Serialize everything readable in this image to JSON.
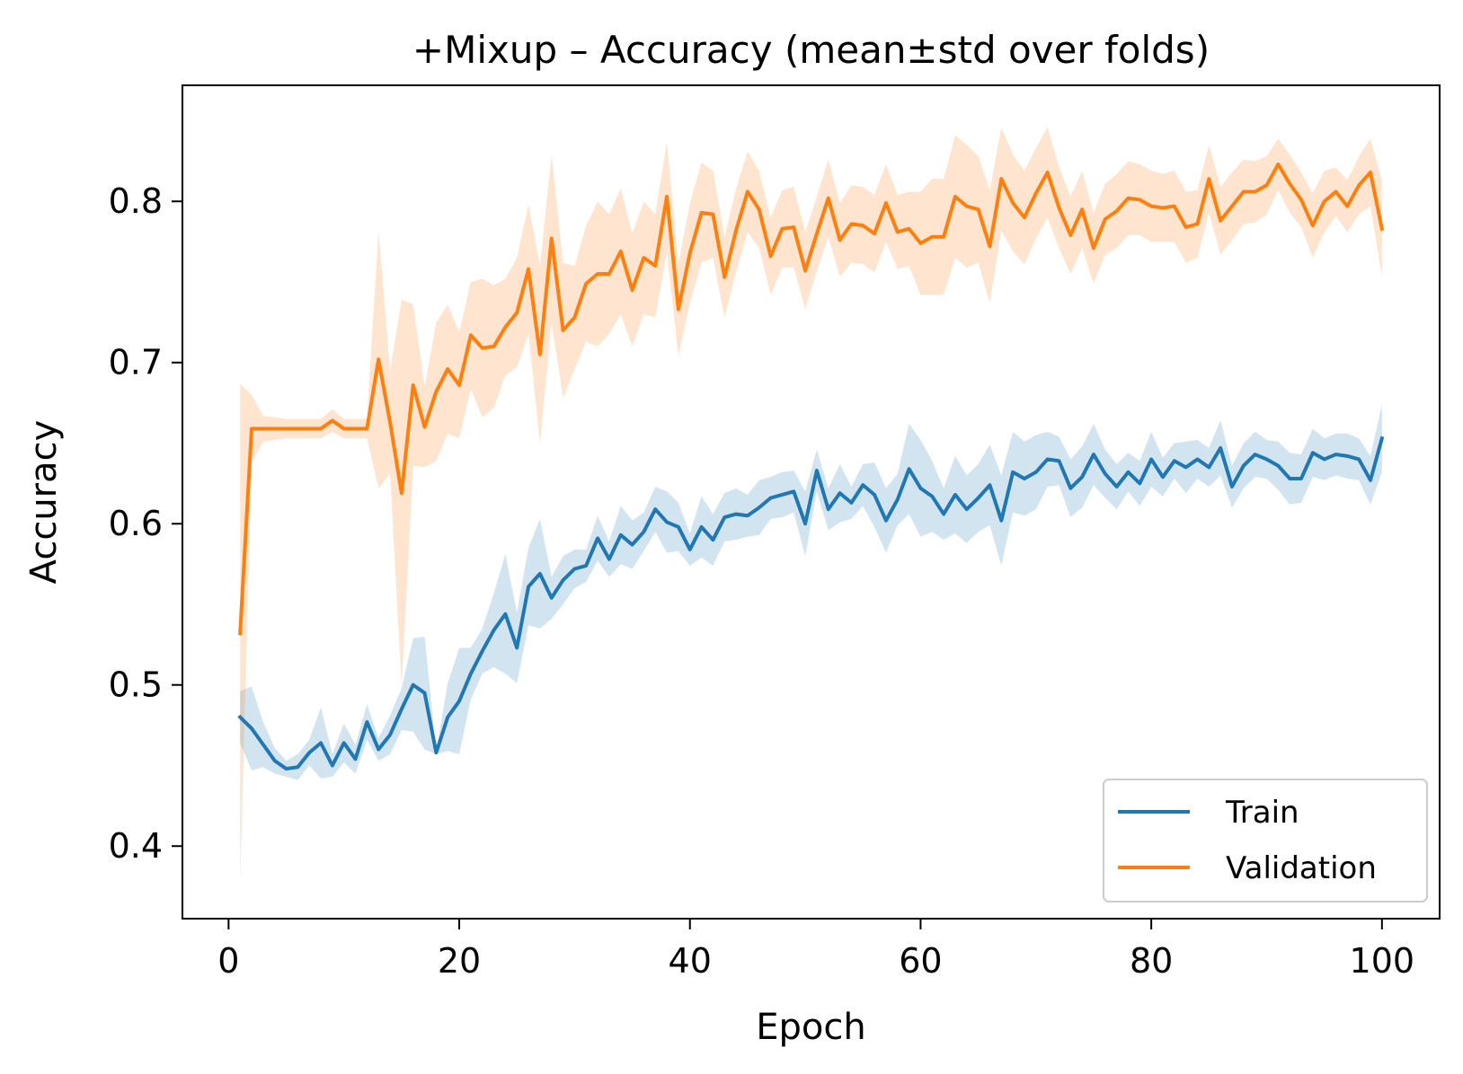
{
  "chart_data": {
    "type": "line",
    "title": "+Mixup – Accuracy (mean±std over folds)",
    "xlabel": "Epoch",
    "ylabel": "Accuracy",
    "xlim": [
      -4,
      105
    ],
    "ylim": [
      0.355,
      0.872
    ],
    "x_ticks": [
      0,
      20,
      40,
      60,
      80,
      100
    ],
    "x_tick_labels": [
      "0",
      "20",
      "40",
      "60",
      "80",
      "100"
    ],
    "y_ticks": [
      0.4,
      0.5,
      0.6,
      0.7,
      0.8
    ],
    "y_tick_labels": [
      "0.4",
      "0.5",
      "0.6",
      "0.7",
      "0.8"
    ],
    "grid": false,
    "legend_position": "lower-right",
    "band_opacity": 0.2,
    "x_start": 1,
    "series": [
      {
        "name": "Train",
        "color": "#1f77b4",
        "mean": [
          0.48,
          0.473,
          0.463,
          0.453,
          0.448,
          0.449,
          0.458,
          0.464,
          0.45,
          0.464,
          0.454,
          0.477,
          0.46,
          0.469,
          0.485,
          0.5,
          0.495,
          0.458,
          0.48,
          0.49,
          0.507,
          0.521,
          0.534,
          0.544,
          0.523,
          0.561,
          0.569,
          0.554,
          0.565,
          0.572,
          0.574,
          0.591,
          0.578,
          0.593,
          0.587,
          0.595,
          0.609,
          0.601,
          0.598,
          0.584,
          0.598,
          0.59,
          0.604,
          0.606,
          0.605,
          0.61,
          0.616,
          0.618,
          0.62,
          0.6,
          0.633,
          0.609,
          0.619,
          0.613,
          0.624,
          0.618,
          0.602,
          0.615,
          0.634,
          0.622,
          0.617,
          0.606,
          0.618,
          0.609,
          0.616,
          0.624,
          0.602,
          0.632,
          0.628,
          0.632,
          0.64,
          0.639,
          0.622,
          0.629,
          0.643,
          0.631,
          0.623,
          0.632,
          0.625,
          0.64,
          0.629,
          0.639,
          0.635,
          0.64,
          0.635,
          0.647,
          0.623,
          0.636,
          0.643,
          0.64,
          0.636,
          0.628,
          0.628,
          0.644,
          0.64,
          0.643,
          0.642,
          0.64,
          0.627,
          0.653
        ],
        "std": [
          0.016,
          0.026,
          0.014,
          0.008,
          0.005,
          0.008,
          0.008,
          0.022,
          0.007,
          0.012,
          0.009,
          0.011,
          0.007,
          0.012,
          0.013,
          0.029,
          0.035,
          0.001,
          0.021,
          0.033,
          0.016,
          0.014,
          0.023,
          0.037,
          0.022,
          0.024,
          0.034,
          0.013,
          0.015,
          0.012,
          0.01,
          0.014,
          0.011,
          0.018,
          0.015,
          0.012,
          0.014,
          0.019,
          0.015,
          0.01,
          0.019,
          0.016,
          0.015,
          0.016,
          0.013,
          0.017,
          0.013,
          0.014,
          0.013,
          0.02,
          0.013,
          0.013,
          0.018,
          0.01,
          0.013,
          0.02,
          0.02,
          0.016,
          0.028,
          0.03,
          0.022,
          0.016,
          0.024,
          0.021,
          0.021,
          0.025,
          0.028,
          0.025,
          0.023,
          0.023,
          0.017,
          0.015,
          0.018,
          0.019,
          0.019,
          0.015,
          0.014,
          0.012,
          0.014,
          0.017,
          0.012,
          0.011,
          0.016,
          0.012,
          0.012,
          0.017,
          0.013,
          0.014,
          0.014,
          0.012,
          0.015,
          0.016,
          0.015,
          0.015,
          0.013,
          0.013,
          0.014,
          0.013,
          0.015,
          0.021
        ]
      },
      {
        "name": "Validation",
        "color": "#ff7f0e",
        "mean": [
          0.532,
          0.659,
          0.659,
          0.659,
          0.659,
          0.659,
          0.659,
          0.659,
          0.664,
          0.659,
          0.659,
          0.659,
          0.702,
          0.663,
          0.619,
          0.686,
          0.66,
          0.682,
          0.696,
          0.686,
          0.717,
          0.709,
          0.71,
          0.722,
          0.731,
          0.758,
          0.705,
          0.777,
          0.72,
          0.728,
          0.749,
          0.755,
          0.755,
          0.769,
          0.745,
          0.765,
          0.76,
          0.803,
          0.733,
          0.768,
          0.793,
          0.792,
          0.753,
          0.782,
          0.806,
          0.795,
          0.766,
          0.783,
          0.784,
          0.757,
          0.78,
          0.802,
          0.776,
          0.786,
          0.785,
          0.78,
          0.799,
          0.781,
          0.783,
          0.774,
          0.778,
          0.778,
          0.803,
          0.797,
          0.795,
          0.772,
          0.814,
          0.799,
          0.79,
          0.805,
          0.818,
          0.796,
          0.779,
          0.795,
          0.771,
          0.789,
          0.794,
          0.802,
          0.801,
          0.797,
          0.796,
          0.797,
          0.784,
          0.786,
          0.814,
          0.788,
          0.797,
          0.806,
          0.806,
          0.81,
          0.823,
          0.811,
          0.801,
          0.785,
          0.8,
          0.806,
          0.797,
          0.81,
          0.818,
          0.783
        ],
        "std": [
          0.155,
          0.021,
          0.008,
          0.007,
          0.006,
          0.006,
          0.006,
          0.006,
          0.007,
          0.006,
          0.006,
          0.006,
          0.08,
          0.032,
          0.12,
          0.05,
          0.025,
          0.043,
          0.04,
          0.033,
          0.033,
          0.043,
          0.038,
          0.03,
          0.034,
          0.04,
          0.055,
          0.052,
          0.042,
          0.032,
          0.036,
          0.045,
          0.037,
          0.039,
          0.035,
          0.035,
          0.032,
          0.034,
          0.029,
          0.031,
          0.031,
          0.027,
          0.025,
          0.026,
          0.025,
          0.024,
          0.024,
          0.024,
          0.025,
          0.024,
          0.023,
          0.024,
          0.023,
          0.024,
          0.024,
          0.024,
          0.024,
          0.023,
          0.023,
          0.032,
          0.036,
          0.036,
          0.038,
          0.038,
          0.033,
          0.035,
          0.032,
          0.03,
          0.029,
          0.028,
          0.028,
          0.025,
          0.024,
          0.024,
          0.022,
          0.022,
          0.023,
          0.023,
          0.022,
          0.022,
          0.021,
          0.022,
          0.022,
          0.021,
          0.021,
          0.021,
          0.021,
          0.02,
          0.019,
          0.018,
          0.016,
          0.018,
          0.017,
          0.02,
          0.019,
          0.015,
          0.016,
          0.018,
          0.021,
          0.03
        ]
      }
    ]
  }
}
